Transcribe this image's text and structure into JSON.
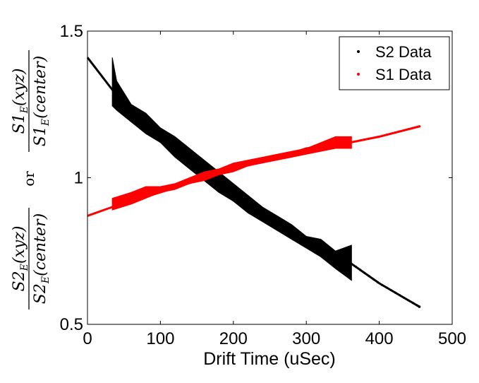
{
  "chart_data": {
    "type": "scatter",
    "xlabel": "Drift Time (uSec)",
    "ylabel": {
      "top_fraction": {
        "num": "S1",
        "num_sub": "E",
        "num_arg": "(xyz)",
        "den": "S1",
        "den_sub": "E",
        "den_arg": "(center)"
      },
      "connector": "or",
      "bottom_fraction": {
        "num": "S2",
        "num_sub": "E",
        "num_arg": "(xyz)",
        "den": "S2",
        "den_sub": "E",
        "den_arg": "(center)"
      }
    },
    "xlim": [
      0,
      500
    ],
    "ylim": [
      0.5,
      1.5
    ],
    "x_ticks": [
      0,
      100,
      200,
      300,
      400,
      500
    ],
    "y_ticks": [
      0.5,
      1,
      1.5
    ],
    "x_tick_labels": [
      "0",
      "100",
      "200",
      "300",
      "400",
      "500"
    ],
    "y_tick_labels": [
      "0.5",
      "1",
      "1.5"
    ],
    "grid": false,
    "legend_position": "top-right",
    "series": [
      {
        "name": "S2 Data",
        "color": "#000000",
        "marker": "dot",
        "trend": [
          [
            0,
            1.41
          ],
          [
            34,
            1.3
          ],
          [
            60,
            1.22
          ],
          [
            100,
            1.14
          ],
          [
            150,
            1.04
          ],
          [
            200,
            0.95
          ],
          [
            250,
            0.87
          ],
          [
            300,
            0.79
          ],
          [
            360,
            0.71
          ],
          [
            400,
            0.64
          ],
          [
            455,
            0.56
          ]
        ],
        "band": [
          [
            34,
            1.245,
            1.41
          ],
          [
            40,
            1.23,
            1.33
          ],
          [
            60,
            1.19,
            1.25
          ],
          [
            80,
            1.15,
            1.22
          ],
          [
            100,
            1.12,
            1.17
          ],
          [
            120,
            1.07,
            1.14
          ],
          [
            140,
            1.03,
            1.1
          ],
          [
            160,
            0.99,
            1.06
          ],
          [
            180,
            0.95,
            1.02
          ],
          [
            200,
            0.92,
            0.98
          ],
          [
            220,
            0.88,
            0.94
          ],
          [
            240,
            0.85,
            0.9
          ],
          [
            260,
            0.82,
            0.87
          ],
          [
            280,
            0.79,
            0.84
          ],
          [
            300,
            0.76,
            0.8
          ],
          [
            320,
            0.73,
            0.79
          ],
          [
            340,
            0.69,
            0.75
          ],
          [
            362,
            0.65,
            0.77
          ]
        ]
      },
      {
        "name": "S1 Data",
        "color": "#ff0000",
        "marker": "dot",
        "trend": [
          [
            0,
            0.87
          ],
          [
            34,
            0.9
          ],
          [
            100,
            0.95
          ],
          [
            150,
            0.99
          ],
          [
            200,
            1.03
          ],
          [
            250,
            1.06
          ],
          [
            300,
            1.1
          ],
          [
            360,
            1.12
          ],
          [
            400,
            1.14
          ],
          [
            455,
            1.175
          ]
        ],
        "band": [
          [
            34,
            0.89,
            0.93
          ],
          [
            60,
            0.91,
            0.95
          ],
          [
            80,
            0.93,
            0.97
          ],
          [
            100,
            0.95,
            0.97
          ],
          [
            120,
            0.96,
            0.98
          ],
          [
            140,
            0.98,
            1.0
          ],
          [
            160,
            0.99,
            1.02
          ],
          [
            180,
            1.01,
            1.03
          ],
          [
            200,
            1.02,
            1.05
          ],
          [
            220,
            1.04,
            1.06
          ],
          [
            240,
            1.05,
            1.07
          ],
          [
            260,
            1.06,
            1.08
          ],
          [
            280,
            1.07,
            1.09
          ],
          [
            300,
            1.08,
            1.1
          ],
          [
            320,
            1.09,
            1.12
          ],
          [
            340,
            1.1,
            1.14
          ],
          [
            362,
            1.1,
            1.14
          ]
        ]
      }
    ]
  }
}
